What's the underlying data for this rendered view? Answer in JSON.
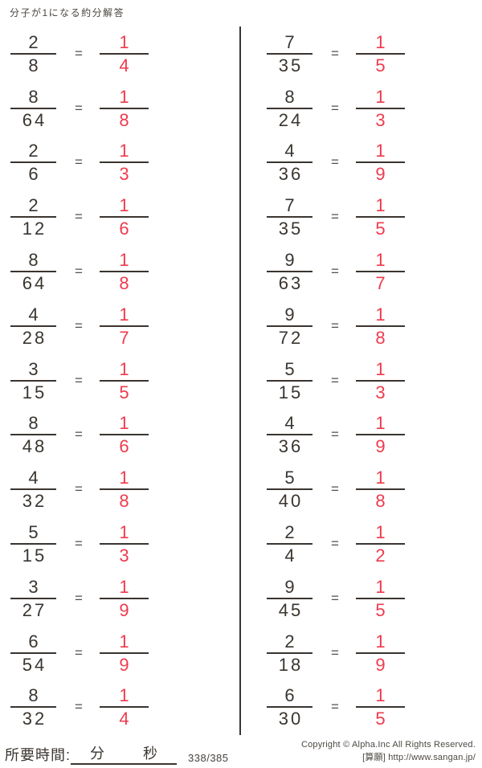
{
  "title": "分子が1になる約分解答",
  "equals": "=",
  "colors": {
    "ink": "#3a3530",
    "answer_red": "#ee3b4c"
  },
  "columns": [
    {
      "problems": [
        {
          "num": "2",
          "den": "8",
          "ans_num": "1",
          "ans_den": "4"
        },
        {
          "num": "8",
          "den": "64",
          "ans_num": "1",
          "ans_den": "8"
        },
        {
          "num": "2",
          "den": "6",
          "ans_num": "1",
          "ans_den": "3"
        },
        {
          "num": "2",
          "den": "12",
          "ans_num": "1",
          "ans_den": "6"
        },
        {
          "num": "8",
          "den": "64",
          "ans_num": "1",
          "ans_den": "8"
        },
        {
          "num": "4",
          "den": "28",
          "ans_num": "1",
          "ans_den": "7"
        },
        {
          "num": "3",
          "den": "15",
          "ans_num": "1",
          "ans_den": "5"
        },
        {
          "num": "8",
          "den": "48",
          "ans_num": "1",
          "ans_den": "6"
        },
        {
          "num": "4",
          "den": "32",
          "ans_num": "1",
          "ans_den": "8"
        },
        {
          "num": "5",
          "den": "15",
          "ans_num": "1",
          "ans_den": "3"
        },
        {
          "num": "3",
          "den": "27",
          "ans_num": "1",
          "ans_den": "9"
        },
        {
          "num": "6",
          "den": "54",
          "ans_num": "1",
          "ans_den": "9"
        },
        {
          "num": "8",
          "den": "32",
          "ans_num": "1",
          "ans_den": "4"
        }
      ]
    },
    {
      "problems": [
        {
          "num": "7",
          "den": "35",
          "ans_num": "1",
          "ans_den": "5"
        },
        {
          "num": "8",
          "den": "24",
          "ans_num": "1",
          "ans_den": "3"
        },
        {
          "num": "4",
          "den": "36",
          "ans_num": "1",
          "ans_den": "9"
        },
        {
          "num": "7",
          "den": "35",
          "ans_num": "1",
          "ans_den": "5"
        },
        {
          "num": "9",
          "den": "63",
          "ans_num": "1",
          "ans_den": "7"
        },
        {
          "num": "9",
          "den": "72",
          "ans_num": "1",
          "ans_den": "8"
        },
        {
          "num": "5",
          "den": "15",
          "ans_num": "1",
          "ans_den": "3"
        },
        {
          "num": "4",
          "den": "36",
          "ans_num": "1",
          "ans_den": "9"
        },
        {
          "num": "5",
          "den": "40",
          "ans_num": "1",
          "ans_den": "8"
        },
        {
          "num": "2",
          "den": "4",
          "ans_num": "1",
          "ans_den": "2"
        },
        {
          "num": "9",
          "den": "45",
          "ans_num": "1",
          "ans_den": "5"
        },
        {
          "num": "2",
          "den": "18",
          "ans_num": "1",
          "ans_den": "9"
        },
        {
          "num": "6",
          "den": "30",
          "ans_num": "1",
          "ans_den": "5"
        }
      ]
    }
  ],
  "footer": {
    "time_label": "所要時間:",
    "minutes_label": "分",
    "seconds_label": "秒",
    "page_indicator": "338/385",
    "copyright_line1": "Copyright ©  Alpha.Inc All Rights Reserved.",
    "copyright_line2": "[算願] http://www.sangan.jp/"
  }
}
